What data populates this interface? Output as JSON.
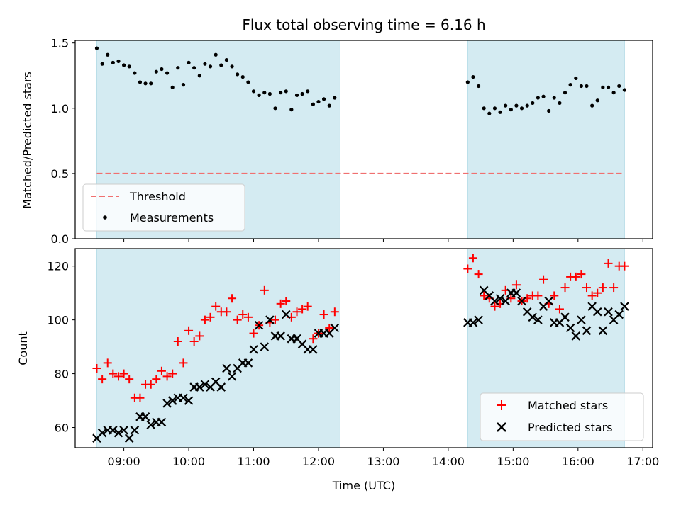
{
  "chart_data": [
    {
      "type": "scatter",
      "title": "Flux total observing time = 6.16 h",
      "xlabel": "",
      "ylabel": "Matched/Predicted stars",
      "ylim": [
        0,
        1.52
      ],
      "yticks": [
        "0.0",
        "0.5",
        "1.0",
        "1.5"
      ],
      "ytick_values": [
        0,
        0.5,
        1.0,
        1.5
      ],
      "xlim_hours": [
        8.25,
        17.15
      ],
      "xtick_hours": [
        9,
        10,
        11,
        12,
        13,
        14,
        15,
        16,
        17
      ],
      "xtick_labels": [],
      "shaded_intervals_hours": [
        [
          8.583,
          12.333
        ],
        [
          14.3,
          16.717
        ]
      ],
      "shade_color": "#d4ebf2",
      "threshold": {
        "label": "Threshold",
        "value": 0.5,
        "x_range": [
          8.583,
          16.717
        ],
        "color": "#f07070"
      },
      "legend": {
        "placement": "lower-left",
        "entries": [
          "Threshold",
          "Measurements"
        ]
      },
      "series": [
        {
          "name": "Measurements",
          "marker": "dot",
          "color": "#000000",
          "x": [
            8.583,
            8.667,
            8.75,
            8.833,
            8.917,
            9.0,
            9.083,
            9.167,
            9.25,
            9.333,
            9.417,
            9.5,
            9.583,
            9.667,
            9.75,
            9.833,
            9.917,
            10.0,
            10.083,
            10.167,
            10.25,
            10.333,
            10.417,
            10.5,
            10.583,
            10.667,
            10.75,
            10.833,
            10.917,
            11.0,
            11.083,
            11.167,
            11.25,
            11.333,
            11.417,
            11.5,
            11.583,
            11.667,
            11.75,
            11.833,
            11.917,
            12.0,
            12.083,
            12.167,
            12.25,
            14.3,
            14.383,
            14.467,
            14.55,
            14.633,
            14.717,
            14.8,
            14.883,
            14.967,
            15.05,
            15.133,
            15.217,
            15.3,
            15.383,
            15.467,
            15.55,
            15.633,
            15.717,
            15.8,
            15.883,
            15.967,
            16.05,
            16.133,
            16.217,
            16.3,
            16.383,
            16.467,
            16.55,
            16.633,
            16.717
          ],
          "y": [
            1.46,
            1.34,
            1.41,
            1.35,
            1.36,
            1.33,
            1.32,
            1.27,
            1.2,
            1.19,
            1.19,
            1.28,
            1.3,
            1.27,
            1.16,
            1.31,
            1.18,
            1.35,
            1.31,
            1.25,
            1.34,
            1.32,
            1.41,
            1.33,
            1.37,
            1.32,
            1.26,
            1.24,
            1.2,
            1.13,
            1.1,
            1.12,
            1.11,
            1.0,
            1.12,
            1.13,
            0.99,
            1.1,
            1.11,
            1.13,
            1.03,
            1.05,
            1.07,
            1.02,
            1.08,
            1.2,
            1.24,
            1.17,
            1.0,
            0.96,
            1.0,
            0.97,
            1.02,
            0.99,
            1.02,
            1.0,
            1.02,
            1.04,
            1.08,
            1.09,
            0.98,
            1.08,
            1.04,
            1.12,
            1.18,
            1.23,
            1.17,
            1.17,
            1.02,
            1.06,
            1.16,
            1.16,
            1.12,
            1.17,
            1.14
          ]
        }
      ]
    },
    {
      "type": "scatter",
      "title": "",
      "xlabel": "Time (UTC)",
      "ylabel": "Count",
      "ylim": [
        52.5,
        126.5
      ],
      "yticks": [
        "60",
        "80",
        "100",
        "120"
      ],
      "ytick_values": [
        60,
        80,
        100,
        120
      ],
      "xlim_hours": [
        8.25,
        17.15
      ],
      "xtick_hours": [
        9,
        10,
        11,
        12,
        13,
        14,
        15,
        16,
        17
      ],
      "xtick_labels": [
        "09:00",
        "10:00",
        "11:00",
        "12:00",
        "13:00",
        "14:00",
        "15:00",
        "16:00",
        "17:00"
      ],
      "shaded_intervals_hours": [
        [
          8.583,
          12.333
        ],
        [
          14.3,
          16.717
        ]
      ],
      "shade_color": "#d4ebf2",
      "legend": {
        "placement": "lower-right",
        "entries": [
          "Matched stars",
          "Predicted stars"
        ]
      },
      "series": [
        {
          "name": "Matched stars",
          "marker": "plus",
          "color": "#ff0000",
          "x": [
            8.583,
            8.667,
            8.75,
            8.833,
            8.917,
            9.0,
            9.083,
            9.167,
            9.25,
            9.333,
            9.417,
            9.5,
            9.583,
            9.667,
            9.75,
            9.833,
            9.917,
            10.0,
            10.083,
            10.167,
            10.25,
            10.333,
            10.417,
            10.5,
            10.583,
            10.667,
            10.75,
            10.833,
            10.917,
            11.0,
            11.083,
            11.167,
            11.25,
            11.333,
            11.417,
            11.5,
            11.583,
            11.667,
            11.75,
            11.833,
            11.917,
            12.0,
            12.083,
            12.167,
            12.25,
            14.3,
            14.383,
            14.467,
            14.55,
            14.633,
            14.717,
            14.8,
            14.883,
            14.967,
            15.05,
            15.133,
            15.217,
            15.3,
            15.383,
            15.467,
            15.55,
            15.633,
            15.717,
            15.8,
            15.883,
            15.967,
            16.05,
            16.133,
            16.217,
            16.3,
            16.383,
            16.467,
            16.55,
            16.633,
            16.717
          ],
          "y": [
            82,
            78,
            84,
            80,
            79,
            80,
            78,
            71,
            71,
            76,
            76,
            78,
            81,
            79,
            80,
            92,
            84,
            96,
            92,
            94,
            100,
            101,
            105,
            103,
            103,
            108,
            100,
            102,
            101,
            95,
            98,
            111,
            99,
            100,
            106,
            107,
            101,
            103,
            104,
            105,
            93,
            95,
            102,
            97,
            103,
            119,
            123,
            117,
            109,
            108,
            105,
            106,
            111,
            108,
            113,
            107,
            108,
            109,
            109,
            115,
            106,
            109,
            104,
            112,
            116,
            116,
            117,
            112,
            109,
            110,
            112,
            121,
            112,
            120,
            120
          ]
        },
        {
          "name": "Predicted stars",
          "marker": "x",
          "color": "#000000",
          "x": [
            8.583,
            8.667,
            8.75,
            8.833,
            8.917,
            9.0,
            9.083,
            9.167,
            9.25,
            9.333,
            9.417,
            9.5,
            9.583,
            9.667,
            9.75,
            9.833,
            9.917,
            10.0,
            10.083,
            10.167,
            10.25,
            10.333,
            10.417,
            10.5,
            10.583,
            10.667,
            10.75,
            10.833,
            10.917,
            11.0,
            11.083,
            11.167,
            11.25,
            11.333,
            11.417,
            11.5,
            11.583,
            11.667,
            11.75,
            11.833,
            11.917,
            12.0,
            12.083,
            12.167,
            12.25,
            14.3,
            14.383,
            14.467,
            14.55,
            14.633,
            14.717,
            14.8,
            14.883,
            14.967,
            15.05,
            15.133,
            15.217,
            15.3,
            15.383,
            15.467,
            15.55,
            15.633,
            15.717,
            15.8,
            15.883,
            15.967,
            16.05,
            16.133,
            16.217,
            16.3,
            16.383,
            16.467,
            16.55,
            16.633,
            16.717
          ],
          "y": [
            56,
            58,
            59,
            59,
            58,
            59,
            56,
            59,
            64,
            64,
            61,
            62,
            62,
            69,
            70,
            71,
            71,
            70,
            75,
            75,
            76,
            75,
            77,
            75,
            82,
            79,
            82,
            84,
            84,
            89,
            98,
            90,
            100,
            94,
            94,
            102,
            93,
            93,
            91,
            89,
            89,
            95,
            95,
            95,
            97,
            99,
            99,
            100,
            111,
            109,
            107,
            108,
            107,
            110,
            110,
            107,
            103,
            101,
            100,
            105,
            107,
            99,
            99,
            101,
            97,
            94,
            100,
            96,
            105,
            103,
            96,
            103,
            100,
            102,
            105
          ]
        }
      ]
    }
  ]
}
